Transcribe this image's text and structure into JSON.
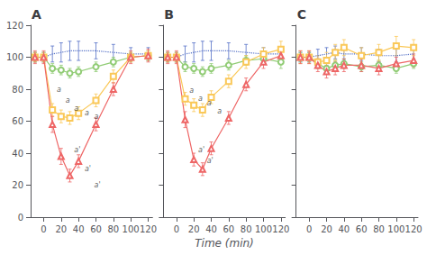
{
  "chart_data": [
    {
      "type": "line",
      "title": "A",
      "x": [
        -10,
        0,
        10,
        20,
        30,
        40,
        60,
        80,
        100,
        120
      ],
      "series": [
        {
          "values": [
            100,
            100,
            102,
            103,
            104,
            104,
            104,
            103,
            102,
            102
          ],
          "errors": [
            3,
            3,
            5,
            6,
            6,
            6,
            5,
            5,
            4,
            4
          ],
          "marker": "none",
          "line_style": "dotted"
        },
        {
          "values": [
            100,
            100,
            93,
            92,
            90,
            91,
            94,
            97,
            100,
            101
          ],
          "errors": [
            3,
            3,
            3,
            3,
            3,
            3,
            3,
            3,
            3,
            3
          ],
          "marker": "circle",
          "line_style": "solid"
        },
        {
          "values": [
            100,
            100,
            67,
            63,
            62,
            65,
            73,
            88,
            100,
            101
          ],
          "errors": [
            3,
            3,
            4,
            4,
            4,
            4,
            4,
            4,
            3,
            3
          ],
          "marker": "square",
          "line_style": "solid"
        },
        {
          "values": [
            100,
            100,
            58,
            38,
            26,
            35,
            58,
            80,
            100,
            101
          ],
          "errors": [
            4,
            4,
            5,
            5,
            4,
            4,
            4,
            4,
            4,
            4
          ],
          "marker": "triangle",
          "line_style": "solid"
        }
      ],
      "xlim": [
        -15,
        125
      ],
      "xticks": [
        0,
        20,
        40,
        60,
        80,
        100,
        120
      ],
      "ylim": [
        0,
        120
      ],
      "yticks": [
        0,
        20,
        40,
        60,
        80,
        100,
        120
      ],
      "grid": false,
      "annotations": [
        {
          "x": 15,
          "y": 80,
          "text": "a"
        },
        {
          "x": 25,
          "y": 73,
          "text": "a"
        },
        {
          "x": 35,
          "y": 68,
          "text": "a"
        },
        {
          "x": 47,
          "y": 65,
          "text": "a"
        },
        {
          "x": 58,
          "y": 63,
          "text": "a"
        },
        {
          "x": 35,
          "y": 42,
          "text": "a'"
        },
        {
          "x": 47,
          "y": 30,
          "text": "a'"
        },
        {
          "x": 58,
          "y": 20,
          "text": "a'"
        }
      ]
    },
    {
      "type": "line",
      "title": "B",
      "xlabel": "Time (min)",
      "x": [
        -10,
        0,
        10,
        20,
        30,
        40,
        60,
        80,
        100,
        120
      ],
      "series": [
        {
          "values": [
            100,
            100,
            102,
            103,
            104,
            104,
            104,
            103,
            102,
            102
          ],
          "errors": [
            3,
            3,
            5,
            6,
            6,
            6,
            5,
            5,
            4,
            4
          ],
          "marker": "none",
          "line_style": "dotted"
        },
        {
          "values": [
            100,
            100,
            94,
            93,
            91,
            93,
            95,
            98,
            99,
            97
          ],
          "errors": [
            3,
            3,
            3,
            3,
            3,
            3,
            3,
            3,
            3,
            4
          ],
          "marker": "circle",
          "line_style": "solid"
        },
        {
          "values": [
            100,
            100,
            74,
            70,
            67,
            75,
            85,
            97,
            102,
            105
          ],
          "errors": [
            3,
            3,
            4,
            4,
            4,
            4,
            4,
            4,
            4,
            5
          ],
          "marker": "square",
          "line_style": "solid"
        },
        {
          "values": [
            100,
            100,
            61,
            36,
            30,
            43,
            62,
            83,
            97,
            101
          ],
          "errors": [
            4,
            4,
            5,
            4,
            4,
            4,
            4,
            4,
            4,
            5
          ],
          "marker": "triangle",
          "line_style": "solid"
        }
      ],
      "xlim": [
        -15,
        125
      ],
      "xticks": [
        0,
        20,
        40,
        60,
        80,
        100,
        120
      ],
      "ylim": [
        0,
        120
      ],
      "yticks": [
        0,
        20,
        40,
        60,
        80,
        100,
        120
      ],
      "grid": false,
      "tick_labels": "x",
      "annotations": [
        {
          "x": 15,
          "y": 79,
          "text": "a"
        },
        {
          "x": 25,
          "y": 74,
          "text": "a"
        },
        {
          "x": 35,
          "y": 71,
          "text": "a"
        },
        {
          "x": 47,
          "y": 66,
          "text": "a"
        },
        {
          "x": 25,
          "y": 42,
          "text": "a'"
        },
        {
          "x": 35,
          "y": 35,
          "text": "a'"
        }
      ]
    },
    {
      "type": "line",
      "title": "C",
      "x": [
        -10,
        0,
        10,
        20,
        30,
        40,
        60,
        80,
        100,
        120
      ],
      "series": [
        {
          "values": [
            100,
            100,
            101,
            102,
            103,
            102,
            102,
            101,
            101,
            102
          ],
          "errors": [
            3,
            3,
            4,
            4,
            4,
            4,
            4,
            4,
            4,
            4
          ],
          "marker": "none",
          "line_style": "dotted"
        },
        {
          "values": [
            100,
            100,
            96,
            93,
            95,
            96,
            94,
            95,
            93,
            96
          ],
          "errors": [
            3,
            3,
            3,
            3,
            3,
            3,
            3,
            3,
            3,
            3
          ],
          "marker": "circle",
          "line_style": "solid"
        },
        {
          "values": [
            100,
            100,
            97,
            98,
            103,
            106,
            101,
            103,
            107,
            106
          ],
          "errors": [
            4,
            4,
            4,
            5,
            5,
            5,
            5,
            5,
            6,
            5
          ],
          "marker": "square",
          "line_style": "solid"
        },
        {
          "values": [
            100,
            100,
            95,
            91,
            93,
            95,
            95,
            93,
            96,
            98
          ],
          "errors": [
            4,
            4,
            4,
            4,
            4,
            4,
            4,
            4,
            4,
            4
          ],
          "marker": "triangle",
          "line_style": "solid"
        }
      ],
      "xlim": [
        -15,
        125
      ],
      "xticks": [
        0,
        20,
        40,
        60,
        80,
        100,
        120
      ],
      "ylim": [
        0,
        120
      ],
      "yticks": [
        0,
        20,
        40,
        60,
        80,
        100,
        120
      ],
      "grid": false,
      "tick_labels": "x"
    }
  ]
}
